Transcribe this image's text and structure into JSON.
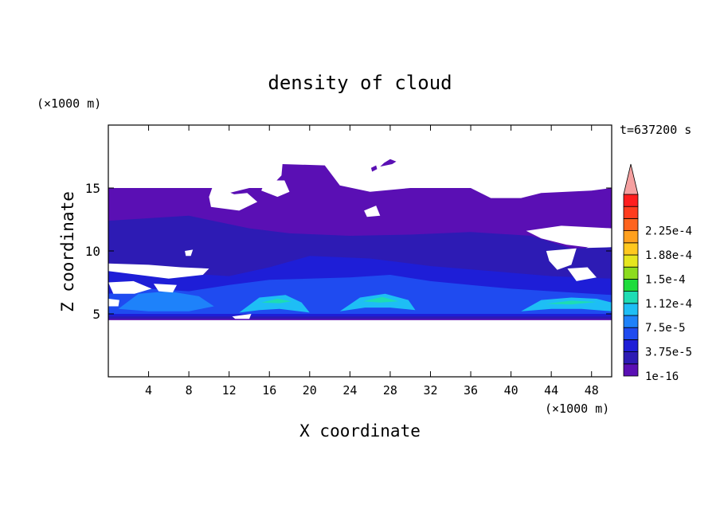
{
  "chart_data": {
    "type": "heatmap",
    "title": "density of cloud",
    "xlabel": "X coordinate",
    "ylabel": "Z coordinate",
    "x_unit_label": "(×1000 m)",
    "y_unit_label": "(×1000 m)",
    "time_label": "t=637200 s",
    "xlim": [
      0,
      50
    ],
    "ylim": [
      0,
      20
    ],
    "x_ticks": [
      4,
      8,
      12,
      16,
      20,
      24,
      28,
      32,
      36,
      40,
      44,
      48
    ],
    "y_ticks": [
      5,
      10,
      15
    ],
    "colorbar": {
      "labels": [
        "2.25e-4",
        "1.88e-4",
        "1.5e-4",
        "1.12e-4",
        "7.5e-5",
        "3.75e-5",
        "1e-16"
      ],
      "colors": [
        "#5a0fb4",
        "#2d1bb4",
        "#1e1ed7",
        "#1f4bf0",
        "#1e82fa",
        "#1ebef5",
        "#1edcb4",
        "#1edc3c",
        "#8cdc1e",
        "#e6e61e",
        "#ffc81e",
        "#ffa01e",
        "#ff641e",
        "#ff3c1e",
        "#ff1e1e"
      ],
      "extend_color": "#f5a0a0"
    },
    "regions": [
      {
        "name": "upper-cloud-layer",
        "color": "#5a0fb4",
        "points": [
          [
            0,
            15.0
          ],
          [
            11,
            15.0
          ],
          [
            11,
            14.0
          ],
          [
            12,
            14.6
          ],
          [
            14,
            15.0
          ],
          [
            16,
            15.0
          ],
          [
            17.2,
            16.0
          ],
          [
            17.3,
            16.9
          ],
          [
            21.5,
            16.8
          ],
          [
            23,
            15.2
          ],
          [
            26,
            14.7
          ],
          [
            30,
            15.0
          ],
          [
            36,
            15.0
          ],
          [
            38,
            14.2
          ],
          [
            41,
            14.2
          ],
          [
            43,
            14.6
          ],
          [
            48,
            14.8
          ],
          [
            50,
            15.0
          ],
          [
            50,
            11.0
          ],
          [
            48,
            10.5
          ],
          [
            46,
            9.5
          ],
          [
            45.8,
            8.8
          ],
          [
            44.5,
            8.1
          ],
          [
            47.5,
            8.2
          ],
          [
            50,
            8.2
          ],
          [
            50,
            4.5
          ],
          [
            0,
            4.5
          ],
          [
            0,
            6.5
          ],
          [
            2,
            7.5
          ],
          [
            0,
            7.8
          ],
          [
            0,
            8.6
          ],
          [
            4,
            8.7
          ],
          [
            0,
            9.0
          ],
          [
            0,
            15.0
          ]
        ]
      },
      {
        "name": "high-patch-1",
        "color": "#5a0fb4",
        "points": [
          [
            27.0,
            16.7
          ],
          [
            28.2,
            16.9
          ],
          [
            28.6,
            17.1
          ],
          [
            28.0,
            17.3
          ],
          [
            27.4,
            17.0
          ]
        ]
      },
      {
        "name": "high-patch-2",
        "color": "#5a0fb4",
        "points": [
          [
            26.2,
            16.3
          ],
          [
            26.7,
            16.5
          ],
          [
            26.6,
            16.8
          ],
          [
            26.1,
            16.6
          ]
        ]
      },
      {
        "name": "mid-cloud-band",
        "color": "#2d1bb4",
        "points": [
          [
            0,
            12.4
          ],
          [
            8,
            12.8
          ],
          [
            14,
            11.8
          ],
          [
            18,
            11.4
          ],
          [
            24,
            11.2
          ],
          [
            30,
            11.3
          ],
          [
            36,
            11.5
          ],
          [
            42,
            11.2
          ],
          [
            46,
            10.2
          ],
          [
            50,
            10.3
          ],
          [
            50,
            4.6
          ],
          [
            0,
            4.6
          ]
        ]
      },
      {
        "name": "lower-layer",
        "color": "#1e1ed7",
        "points": [
          [
            0,
            8.6
          ],
          [
            6,
            8.3
          ],
          [
            12,
            8.0
          ],
          [
            16,
            8.7
          ],
          [
            20,
            9.6
          ],
          [
            26,
            9.4
          ],
          [
            32,
            8.8
          ],
          [
            38,
            8.4
          ],
          [
            44,
            8.0
          ],
          [
            50,
            7.8
          ],
          [
            50,
            4.8
          ],
          [
            0,
            4.8
          ]
        ]
      },
      {
        "name": "boundary-layer",
        "color": "#1f4bf0",
        "points": [
          [
            0,
            6.6
          ],
          [
            4,
            7.0
          ],
          [
            8,
            6.8
          ],
          [
            12,
            7.3
          ],
          [
            16,
            7.7
          ],
          [
            20,
            7.8
          ],
          [
            24,
            7.9
          ],
          [
            28,
            8.1
          ],
          [
            32,
            7.6
          ],
          [
            36,
            7.3
          ],
          [
            40,
            7.0
          ],
          [
            44,
            6.8
          ],
          [
            48,
            6.6
          ],
          [
            50,
            6.5
          ],
          [
            50,
            5.0
          ],
          [
            0,
            5.0
          ]
        ]
      },
      {
        "name": "cell-left",
        "color": "#1e82fa",
        "points": [
          [
            1,
            5.4
          ],
          [
            3,
            6.6
          ],
          [
            6,
            6.8
          ],
          [
            9,
            6.4
          ],
          [
            10.5,
            5.6
          ],
          [
            8,
            5.2
          ],
          [
            4,
            5.2
          ]
        ]
      },
      {
        "name": "cell-16",
        "color": "#1ebef5",
        "points": [
          [
            13,
            5.1
          ],
          [
            15,
            6.3
          ],
          [
            17.6,
            6.5
          ],
          [
            19.2,
            5.9
          ],
          [
            20,
            5.1
          ],
          [
            17,
            5.4
          ],
          [
            15,
            5.3
          ]
        ]
      },
      {
        "name": "cell-16-core",
        "color": "#1edcb4",
        "points": [
          [
            15.2,
            5.9
          ],
          [
            16.8,
            6.2
          ],
          [
            18.2,
            6.0
          ],
          [
            17,
            5.85
          ]
        ]
      },
      {
        "name": "cell-26",
        "color": "#1ebef5",
        "points": [
          [
            23,
            5.2
          ],
          [
            25,
            6.3
          ],
          [
            27.5,
            6.6
          ],
          [
            29.8,
            6.1
          ],
          [
            30.5,
            5.3
          ],
          [
            28,
            5.5
          ],
          [
            25.5,
            5.5
          ]
        ]
      },
      {
        "name": "cell-26-core",
        "color": "#1edcb4",
        "points": [
          [
            25.3,
            6.0
          ],
          [
            27.2,
            6.35
          ],
          [
            28.8,
            6.0
          ],
          [
            27,
            5.9
          ]
        ]
      },
      {
        "name": "cell-45",
        "color": "#1ebef5",
        "points": [
          [
            41,
            5.2
          ],
          [
            43,
            6.1
          ],
          [
            46,
            6.3
          ],
          [
            48.5,
            6.2
          ],
          [
            50,
            5.9
          ],
          [
            50,
            5.2
          ],
          [
            47,
            5.4
          ],
          [
            44,
            5.4
          ]
        ]
      },
      {
        "name": "cell-45-core",
        "color": "#1edcb4",
        "points": [
          [
            43.5,
            5.8
          ],
          [
            46,
            6.05
          ],
          [
            48.5,
            5.95
          ],
          [
            46,
            5.75
          ]
        ]
      },
      {
        "name": "gap-upper-left",
        "color": "#ffffff",
        "points": [
          [
            10.4,
            15.2
          ],
          [
            12.5,
            14.5
          ],
          [
            13.8,
            14.6
          ],
          [
            14.8,
            13.9
          ],
          [
            13,
            13.2
          ],
          [
            10.2,
            13.5
          ],
          [
            10.0,
            14.3
          ]
        ]
      },
      {
        "name": "gap-upper-mid",
        "color": "#ffffff",
        "points": [
          [
            15.6,
            15.6
          ],
          [
            17.5,
            15.6
          ],
          [
            18.0,
            14.7
          ],
          [
            16.8,
            14.3
          ],
          [
            15.2,
            14.8
          ]
        ]
      },
      {
        "name": "gap-right",
        "color": "#ffffff",
        "points": [
          [
            41.5,
            11.6
          ],
          [
            45,
            12.0
          ],
          [
            50,
            11.8
          ],
          [
            50,
            10.8
          ],
          [
            47.5,
            10.3
          ],
          [
            45.5,
            10.5
          ],
          [
            43,
            11.0
          ]
        ]
      },
      {
        "name": "gap-right-2",
        "color": "#ffffff",
        "points": [
          [
            43.5,
            10.0
          ],
          [
            46.5,
            10.2
          ],
          [
            46.0,
            8.9
          ],
          [
            44.6,
            8.5
          ],
          [
            43.8,
            9.2
          ]
        ]
      },
      {
        "name": "gap-right-3",
        "color": "#ffffff",
        "points": [
          [
            45.6,
            8.6
          ],
          [
            47.6,
            8.7
          ],
          [
            48.5,
            7.9
          ],
          [
            46.5,
            7.6
          ]
        ]
      },
      {
        "name": "gap-left-1",
        "color": "#ffffff",
        "points": [
          [
            0,
            9.0
          ],
          [
            4.0,
            8.9
          ],
          [
            7.2,
            8.7
          ],
          [
            10,
            8.6
          ],
          [
            9.4,
            8.1
          ],
          [
            6.0,
            7.8
          ],
          [
            3.0,
            8.1
          ],
          [
            0,
            8.4
          ]
        ]
      },
      {
        "name": "gap-left-2",
        "color": "#ffffff",
        "points": [
          [
            0,
            7.5
          ],
          [
            2.5,
            7.6
          ],
          [
            4.3,
            7.0
          ],
          [
            2.6,
            6.6
          ],
          [
            0.5,
            6.6
          ]
        ]
      },
      {
        "name": "gap-left-3",
        "color": "#ffffff",
        "points": [
          [
            4.5,
            7.4
          ],
          [
            6.8,
            7.3
          ],
          [
            6.4,
            6.7
          ],
          [
            5.0,
            6.8
          ]
        ]
      },
      {
        "name": "gap-left-4",
        "color": "#ffffff",
        "points": [
          [
            0,
            6.2
          ],
          [
            1.1,
            6.1
          ],
          [
            1.0,
            5.6
          ],
          [
            0,
            5.6
          ]
        ]
      },
      {
        "name": "gap-left-5",
        "color": "#ffffff",
        "points": [
          [
            7.6,
            10.0
          ],
          [
            8.4,
            10.1
          ],
          [
            8.2,
            9.6
          ],
          [
            7.7,
            9.6
          ]
        ]
      },
      {
        "name": "gap-15",
        "color": "#ffffff",
        "points": [
          [
            12.3,
            4.8
          ],
          [
            14.2,
            5.0
          ],
          [
            14.0,
            4.6
          ],
          [
            12.6,
            4.6
          ]
        ]
      },
      {
        "name": "gap-upper-right",
        "color": "#ffffff",
        "points": [
          [
            25.4,
            13.2
          ],
          [
            26.6,
            13.6
          ],
          [
            27.0,
            12.8
          ],
          [
            25.7,
            12.7
          ]
        ]
      }
    ]
  }
}
